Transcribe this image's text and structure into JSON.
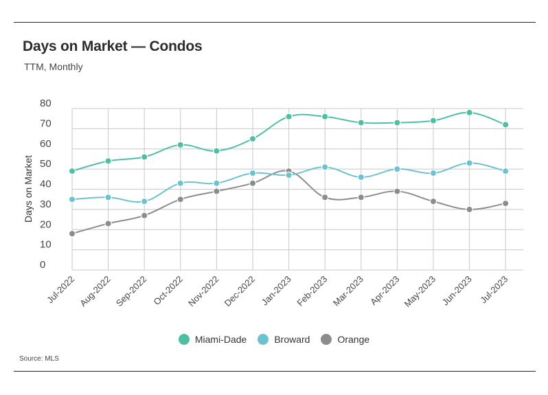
{
  "header": {
    "title": "Days on Market — Condos",
    "subtitle": "TTM, Monthly"
  },
  "footer": {
    "source": "Source: MLS"
  },
  "chart_data": {
    "type": "line",
    "title": "Days on Market — Condos",
    "subtitle": "TTM, Monthly",
    "xlabel": "",
    "ylabel": "Days on Market",
    "ylim": [
      0,
      80
    ],
    "yticks": [
      0,
      10,
      20,
      30,
      40,
      50,
      60,
      70,
      80
    ],
    "grid": true,
    "legend": "bottom",
    "categories": [
      "Jul-2022",
      "Aug-2022",
      "Sep-2022",
      "Oct-2022",
      "Nov-2022",
      "Dec-2022",
      "Jan-2023",
      "Feb-2023",
      "Mar-2023",
      "Apr-2023",
      "May-2023",
      "Jun-2023",
      "Jul-2023"
    ],
    "series": [
      {
        "name": "Miami-Dade",
        "color": "#4dbfa3",
        "values": [
          49,
          54,
          56,
          62,
          59,
          65,
          76,
          76,
          73,
          73,
          74,
          78,
          72
        ]
      },
      {
        "name": "Broward",
        "color": "#6cc3cf",
        "values": [
          35,
          36,
          34,
          43,
          43,
          48,
          47,
          51,
          46,
          50,
          48,
          53,
          49
        ]
      },
      {
        "name": "Orange",
        "color": "#8c8c8c",
        "values": [
          18,
          23,
          27,
          35,
          39,
          43,
          49,
          36,
          36,
          39,
          34,
          30,
          33
        ]
      }
    ]
  }
}
